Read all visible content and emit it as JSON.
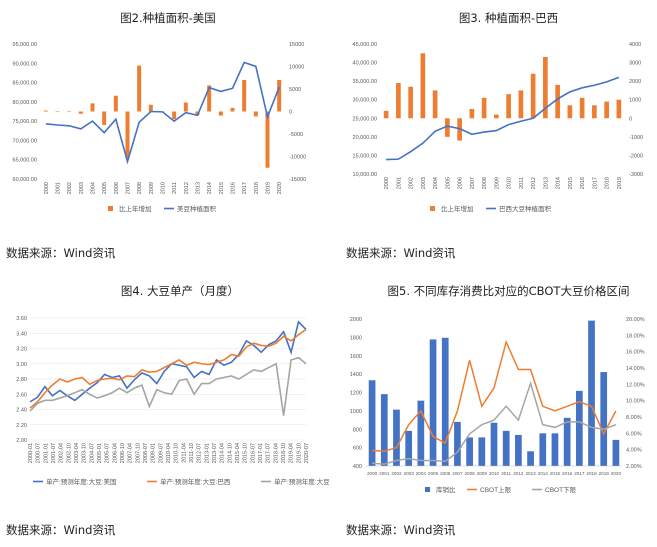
{
  "sources": [
    "数据来源：Wind资讯",
    "数据来源：Wind资讯",
    "数据来源：Wind资讯",
    "数据来源：Wind资讯"
  ],
  "colors": {
    "blue": "#4472C4",
    "orange": "#ED7D31",
    "gray": "#A5A5A5"
  },
  "chart_data": [
    {
      "type": "bar+line",
      "title": "图2.种植面积-美国",
      "categories": [
        "2000",
        "2001",
        "2002",
        "2003",
        "2004",
        "2005",
        "2006",
        "2007",
        "2008",
        "2009",
        "2010",
        "2011",
        "2012",
        "2013",
        "2014",
        "2015",
        "2016",
        "2017",
        "2018",
        "2019",
        "2020"
      ],
      "series": [
        {
          "name": "比上年增加",
          "type": "bar",
          "axis": "right",
          "values": [
            200,
            100,
            0,
            -500,
            1800,
            -3000,
            3500,
            -10500,
            10200,
            1500,
            0,
            -1700,
            2000,
            -800,
            5800,
            -900,
            800,
            7000,
            -1100,
            -12500,
            7000
          ]
        },
        {
          "name": "美豆种植面积",
          "type": "line",
          "axis": "left",
          "values": [
            74300,
            74000,
            73800,
            73000,
            75000,
            72000,
            75500,
            64500,
            74700,
            77500,
            77400,
            75000,
            77200,
            76500,
            83700,
            82700,
            83500,
            90200,
            89200,
            76100,
            83800
          ]
        }
      ],
      "y_left": {
        "min": 60000,
        "max": 95000,
        "step": 5000,
        "labels": [
          "60,000.00",
          "65,000.00",
          "70,000.00",
          "75,000.00",
          "80,000.00",
          "85,000.00",
          "90,000.00",
          "95,000.00"
        ]
      },
      "y_right": {
        "min": -15000,
        "max": 15000,
        "step": 5000,
        "labels": [
          "-15000",
          "-10000",
          "-5000",
          "0",
          "5000",
          "10000",
          "15000"
        ]
      }
    },
    {
      "type": "bar+line",
      "title": "图3.   种植面积-巴西",
      "categories": [
        "2000",
        "2001",
        "2002",
        "2003",
        "2004",
        "2005",
        "2006",
        "2007",
        "2008",
        "2009",
        "2010",
        "2011",
        "2012",
        "2013",
        "2014",
        "2015",
        "2016",
        "2017",
        "2018",
        "2019"
      ],
      "series": [
        {
          "name": "比上年增加",
          "type": "bar",
          "axis": "right",
          "values": [
            400,
            1900,
            1700,
            3500,
            1500,
            -1000,
            -1200,
            500,
            1100,
            200,
            1300,
            1500,
            2400,
            3300,
            1800,
            700,
            1100,
            700,
            900,
            1000
          ]
        },
        {
          "name": "巴西大豆种植面积",
          "type": "line",
          "axis": "left",
          "values": [
            13900,
            14000,
            16000,
            18300,
            21500,
            22900,
            22200,
            20700,
            21300,
            21700,
            23300,
            24200,
            25000,
            27700,
            30200,
            32100,
            33200,
            33900,
            34800,
            36000
          ]
        }
      ],
      "y_left": {
        "min": 10000,
        "max": 45000,
        "step": 5000,
        "labels": [
          "10,000.00",
          "15,000.00",
          "20,000.00",
          "25,000.00",
          "30,000.00",
          "35,000.00",
          "40,000.00",
          "45,000.00"
        ]
      },
      "y_right": {
        "min": -3000,
        "max": 4000,
        "step": 1000,
        "labels": [
          "-3000",
          "-2000",
          "-1000",
          "0",
          "1000",
          "2000",
          "3000",
          "4000"
        ]
      }
    },
    {
      "type": "line",
      "title": "图4.   大豆单产（月度）",
      "x_labels": [
        "2000-01",
        "2000-07",
        "2001-01",
        "2001-07",
        "2002-04",
        "2002-10",
        "2003-04",
        "2003-10",
        "2004-07",
        "2005-01",
        "2005-07",
        "2006-04",
        "2006-10",
        "2007-04",
        "2007-10",
        "2008-07",
        "2009-01",
        "2009-07",
        "2010-04",
        "2010-10",
        "2011-04",
        "2011-10",
        "2012-07",
        "2013-01",
        "2013-07",
        "2014-04",
        "2014-10",
        "2015-04",
        "2015-10",
        "2016-07",
        "2017-01",
        "2017-07",
        "2018-04",
        "2018-10",
        "2019-04",
        "2019-10",
        "2020-07"
      ],
      "ylim": [
        2.0,
        3.6
      ],
      "y_labels": [
        "2.00",
        "2.20",
        "2.40",
        "2.60",
        "2.80",
        "3.00",
        "3.20",
        "3.40",
        "3.60"
      ],
      "series": [
        {
          "name": "单产:预测年度:大豆:美国",
          "color": "blue",
          "points": [
            2.5,
            2.56,
            2.7,
            2.58,
            2.65,
            2.58,
            2.52,
            2.6,
            2.68,
            2.75,
            2.86,
            2.82,
            2.84,
            2.68,
            2.79,
            2.88,
            2.84,
            2.74,
            2.9,
            3.0,
            2.98,
            2.96,
            2.82,
            2.9,
            2.86,
            3.05,
            2.98,
            3.02,
            3.12,
            3.3,
            3.24,
            3.15,
            3.25,
            3.3,
            3.42,
            3.15,
            3.55,
            3.45
          ]
        },
        {
          "name": "单产:预测年度:大豆:巴西",
          "color": "orange",
          "points": [
            2.42,
            2.5,
            2.62,
            2.72,
            2.8,
            2.76,
            2.8,
            2.82,
            2.73,
            2.78,
            2.8,
            2.81,
            2.79,
            2.84,
            2.83,
            2.92,
            2.89,
            2.9,
            2.95,
            3.0,
            3.05,
            2.98,
            3.02,
            3.0,
            2.99,
            3.02,
            3.05,
            3.12,
            3.1,
            3.22,
            3.27,
            3.24,
            3.23,
            3.27,
            3.36,
            3.3,
            3.38,
            3.45
          ]
        },
        {
          "name": "单产:预测年度:大豆:阿根廷",
          "color": "gray",
          "points": [
            2.38,
            2.48,
            2.52,
            2.52,
            2.55,
            2.58,
            2.62,
            2.66,
            2.6,
            2.55,
            2.58,
            2.62,
            2.68,
            2.62,
            2.68,
            2.72,
            2.44,
            2.66,
            2.62,
            2.6,
            2.78,
            2.8,
            2.6,
            2.74,
            2.74,
            2.8,
            2.82,
            2.84,
            2.8,
            2.86,
            2.92,
            2.9,
            2.95,
            3.0,
            2.32,
            3.05,
            3.08,
            3.0
          ]
        }
      ]
    },
    {
      "type": "bar+line",
      "title": "图5.   不同库存消费比对应的CBOT大豆价格区间",
      "categories": [
        "2000",
        "2001",
        "2002",
        "2003",
        "2004",
        "2005",
        "2006",
        "2007",
        "2008",
        "2009",
        "2010",
        "2011",
        "2012",
        "2013",
        "2014",
        "2015",
        "2016",
        "2017",
        "2018",
        "2019",
        "2020"
      ],
      "series": [
        {
          "name": "库销比",
          "type": "bar",
          "axis": "right",
          "values": [
            12.5,
            10.8,
            8.9,
            6.3,
            10.0,
            17.5,
            17.7,
            7.4,
            5.5,
            5.5,
            7.3,
            6.3,
            5.8,
            3.8,
            6.0,
            6.0,
            7.9,
            11.2,
            19.8,
            13.5,
            5.2
          ]
        },
        {
          "name": "CBOT上限",
          "type": "line",
          "axis": "left",
          "color": "orange",
          "values": [
            570,
            560,
            600,
            850,
            1000,
            720,
            650,
            1000,
            1550,
            1050,
            1250,
            1750,
            1450,
            1450,
            1050,
            1000,
            1050,
            1100,
            1050,
            750,
            1000
          ]
        },
        {
          "name": "CBOT下限",
          "type": "line",
          "axis": "left",
          "color": "gray",
          "values": [
            430,
            420,
            460,
            480,
            460,
            460,
            450,
            550,
            750,
            850,
            900,
            1050,
            900,
            1300,
            850,
            820,
            880,
            880,
            820,
            800,
            850
          ]
        }
      ],
      "y_left": {
        "min": 400,
        "max": 2000,
        "step": 200,
        "labels": [
          "400",
          "600",
          "800",
          "1000",
          "1200",
          "1400",
          "1600",
          "1800",
          "2000"
        ]
      },
      "y_right": {
        "min": 2,
        "max": 20,
        "step": 2,
        "labels": [
          "2.00%",
          "4.00%",
          "6.00%",
          "8.00%",
          "10.00%",
          "12.00%",
          "14.00%",
          "16.00%",
          "18.00%",
          "20.00%"
        ]
      }
    }
  ]
}
